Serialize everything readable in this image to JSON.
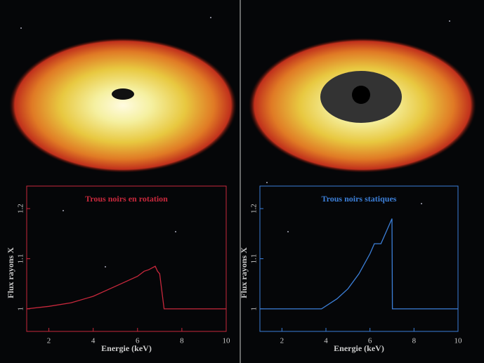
{
  "chart_data": [
    {
      "type": "line",
      "title": "Trous noirs en rotation",
      "x_label": "Energie (keV)",
      "y_label": "Flux rayons X",
      "x": [
        1,
        2,
        3,
        4,
        5,
        6,
        6.3,
        6.5,
        6.8,
        6.9,
        7.0,
        7.2,
        8,
        9,
        10
      ],
      "values": [
        1,
        1.005,
        1.012,
        1.025,
        1.045,
        1.065,
        1.075,
        1.078,
        1.085,
        1.075,
        1.07,
        1,
        1,
        1,
        1
      ],
      "color": "#c8283c",
      "xlim": [
        1,
        10
      ],
      "xticks": [
        2,
        4,
        6,
        8,
        10
      ],
      "ylim": [
        0.955,
        1.245
      ],
      "yticks": [
        1,
        1.1,
        1.2
      ]
    },
    {
      "type": "line",
      "title": "Trous noirs statiques",
      "x_label": "Energie (keV)",
      "y_label": "Flux rayons X",
      "x": [
        1,
        2,
        3,
        3.8,
        4.5,
        5,
        5.5,
        6,
        6.2,
        6.5,
        6.8,
        7.0,
        7.02,
        8,
        9,
        10
      ],
      "values": [
        1,
        1,
        1,
        1,
        1.02,
        1.04,
        1.07,
        1.11,
        1.13,
        1.13,
        1.16,
        1.18,
        1,
        1,
        1,
        1
      ],
      "color": "#3c7fd8",
      "xlim": [
        1,
        10
      ],
      "xticks": [
        2,
        4,
        6,
        8,
        10
      ],
      "ylim": [
        0.955,
        1.245
      ],
      "yticks": [
        1,
        1.1,
        1.2
      ]
    }
  ]
}
